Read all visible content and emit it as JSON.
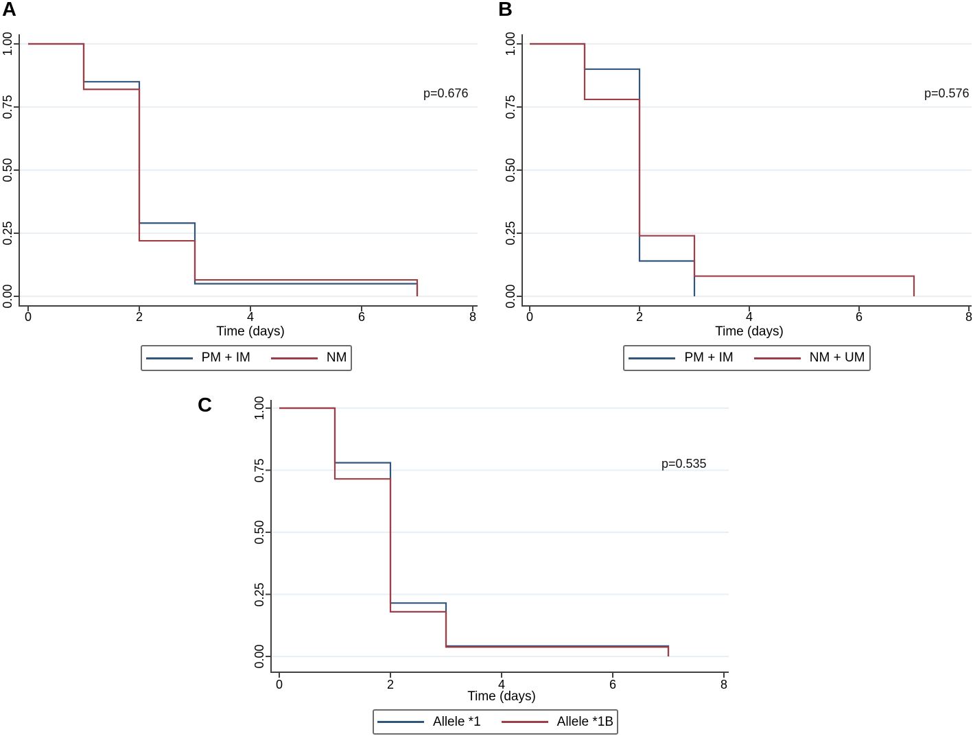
{
  "figure": {
    "background": "#ffffff",
    "panel_letters": [
      "A",
      "B",
      "C"
    ]
  },
  "colors": {
    "navy": "#31567b",
    "maroon": "#9e3e47",
    "gridline": "#e8f0f5",
    "axis": "#404040",
    "legend_border": "#6b6b6b",
    "text": "#000000"
  },
  "chart_data": [
    {
      "type": "line",
      "subtype": "kaplan-meier-step",
      "panel": "A",
      "p_value_text": "p=0.676",
      "xlabel": "Time (days)",
      "x_ticks": [
        0,
        2,
        4,
        6,
        8
      ],
      "y_ticks": [
        "1.00",
        "0.75",
        "0.50",
        "0.25",
        "0.00"
      ],
      "xlim": [
        0,
        8
      ],
      "ylim": [
        0,
        1
      ],
      "grid": "horizontal",
      "legend_position": "bottom",
      "series": [
        {
          "name": "PM + IM",
          "color": "#31567b",
          "step_points": [
            [
              0,
              1.0
            ],
            [
              1,
              0.85
            ],
            [
              2,
              0.29
            ],
            [
              3,
              0.05
            ],
            [
              7,
              0.0
            ]
          ]
        },
        {
          "name": "NM",
          "color": "#9e3e47",
          "step_points": [
            [
              0,
              1.0
            ],
            [
              1,
              0.82
            ],
            [
              2,
              0.22
            ],
            [
              3,
              0.065
            ],
            [
              7,
              0.0
            ]
          ]
        }
      ]
    },
    {
      "type": "line",
      "subtype": "kaplan-meier-step",
      "panel": "B",
      "p_value_text": "p=0.576",
      "xlabel": "Time (days)",
      "x_ticks": [
        0,
        2,
        4,
        6,
        8
      ],
      "y_ticks": [
        "1.00",
        "0.75",
        "0.50",
        "0.25",
        "0.00"
      ],
      "xlim": [
        0,
        8
      ],
      "ylim": [
        0,
        1
      ],
      "grid": "horizontal",
      "legend_position": "bottom",
      "series": [
        {
          "name": "PM + IM",
          "color": "#31567b",
          "step_points": [
            [
              0,
              1.0
            ],
            [
              1,
              0.9
            ],
            [
              2,
              0.14
            ],
            [
              3,
              0.0
            ]
          ]
        },
        {
          "name": "NM + UM",
          "color": "#9e3e47",
          "step_points": [
            [
              0,
              1.0
            ],
            [
              1,
              0.78
            ],
            [
              2,
              0.24
            ],
            [
              3,
              0.08
            ],
            [
              7,
              0.0
            ]
          ]
        }
      ]
    },
    {
      "type": "line",
      "subtype": "kaplan-meier-step",
      "panel": "C",
      "p_value_text": "p=0.535",
      "xlabel": "Time (days)",
      "x_ticks": [
        0,
        2,
        4,
        6,
        8
      ],
      "y_ticks": [
        "1.00",
        "0.75",
        "0.50",
        "0.25",
        "0.00"
      ],
      "xlim": [
        0,
        8
      ],
      "ylim": [
        0,
        1
      ],
      "grid": "horizontal",
      "legend_position": "bottom",
      "series": [
        {
          "name": "Allele *1",
          "color": "#31567b",
          "step_points": [
            [
              0,
              1.0
            ],
            [
              1,
              0.78
            ],
            [
              2,
              0.215
            ],
            [
              3,
              0.042
            ],
            [
              7,
              0.0
            ]
          ]
        },
        {
          "name": "Allele *1B",
          "color": "#9e3e47",
          "step_points": [
            [
              0,
              1.0
            ],
            [
              1,
              0.715
            ],
            [
              2,
              0.18
            ],
            [
              3,
              0.038
            ],
            [
              7,
              0.0
            ]
          ]
        }
      ]
    }
  ]
}
